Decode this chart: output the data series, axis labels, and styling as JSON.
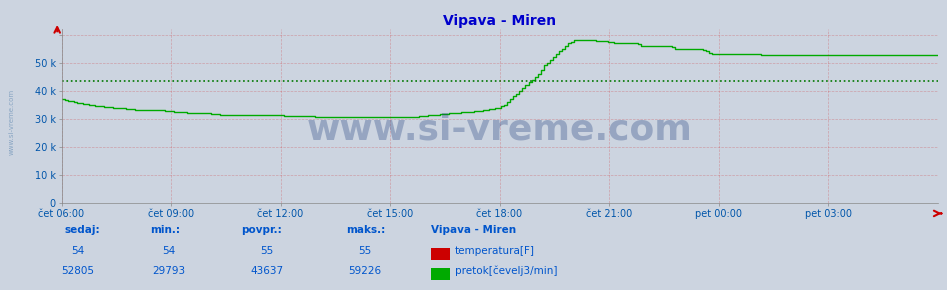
{
  "title": "Vipava - Miren",
  "title_color": "#0000cc",
  "bg_color": "#ccd4e0",
  "plot_bg_color": "#ccd4e0",
  "x_label_color": "#0055aa",
  "y_label_color": "#0055aa",
  "grid_color_h": "#cc0000",
  "grid_color_v": "#cc0000",
  "grid_alpha": 0.25,
  "ylim": [
    0,
    62000
  ],
  "yticks": [
    0,
    10000,
    20000,
    30000,
    40000,
    50000,
    60000
  ],
  "ytick_labels": [
    "0",
    "10 k",
    "20 k",
    "30 k",
    "40 k",
    "50 k",
    ""
  ],
  "xtick_labels": [
    "čet 06:00",
    "čet 09:00",
    "čet 12:00",
    "čet 15:00",
    "čet 18:00",
    "čet 21:00",
    "pet 00:00",
    "pet 03:00"
  ],
  "n_points": 288,
  "temp_value": 43637,
  "flow_data": [
    37000,
    36800,
    36500,
    36200,
    36000,
    35800,
    35600,
    35400,
    35200,
    35000,
    34800,
    34600,
    34500,
    34400,
    34300,
    34200,
    34100,
    34000,
    33900,
    33800,
    33700,
    33600,
    33500,
    33400,
    33300,
    33200,
    33100,
    33000,
    33000,
    33000,
    33000,
    33000,
    33000,
    33000,
    32900,
    32800,
    32700,
    32600,
    32500,
    32400,
    32300,
    32200,
    32100,
    32000,
    32000,
    32000,
    32000,
    32000,
    31900,
    31800,
    31700,
    31600,
    31500,
    31400,
    31300,
    31300,
    31200,
    31200,
    31200,
    31200,
    31200,
    31200,
    31200,
    31200,
    31200,
    31200,
    31200,
    31200,
    31200,
    31200,
    31200,
    31200,
    31200,
    31100,
    31000,
    31000,
    31000,
    31000,
    31000,
    31000,
    31000,
    30900,
    30900,
    30800,
    30800,
    30800,
    30800,
    30800,
    30800,
    30700,
    30700,
    30700,
    30700,
    30700,
    30700,
    30700,
    30700,
    30700,
    30700,
    30700,
    30700,
    30700,
    30700,
    30700,
    30700,
    30700,
    30700,
    30700,
    30700,
    30700,
    30700,
    30700,
    30700,
    30700,
    30700,
    30800,
    30800,
    30900,
    31000,
    31100,
    31200,
    31300,
    31400,
    31500,
    31600,
    31700,
    31800,
    31900,
    32000,
    32100,
    32200,
    32300,
    32400,
    32500,
    32600,
    32700,
    32800,
    32900,
    33000,
    33200,
    33400,
    33600,
    33800,
    34000,
    34500,
    35000,
    36000,
    37000,
    38000,
    39000,
    40000,
    41000,
    42000,
    43000,
    44000,
    45000,
    46000,
    47500,
    49000,
    50000,
    51000,
    52000,
    53000,
    54000,
    55000,
    56000,
    57000,
    57500,
    58000,
    58200,
    58200,
    58200,
    58200,
    58100,
    58000,
    57900,
    57800,
    57700,
    57600,
    57500,
    57200,
    57000,
    57000,
    57000,
    57000,
    57000,
    57000,
    57000,
    57000,
    56500,
    56000,
    56000,
    56000,
    56000,
    56000,
    56000,
    56000,
    56000,
    56000,
    56000,
    55500,
    55000,
    55000,
    55000,
    55000,
    55000,
    55000,
    55000,
    55000,
    55000,
    54500,
    54000,
    53500,
    53000,
    53000,
    53000,
    53000,
    53000,
    53000,
    53000,
    53000,
    53000,
    53000,
    53000,
    53000,
    53000,
    53000,
    53000,
    53000,
    52805,
    52805,
    52805,
    52805,
    52805,
    52805,
    52805,
    52805,
    52805,
    52805,
    52805,
    52805,
    52805,
    52805,
    52805,
    52805,
    52805,
    52805,
    52805,
    52805,
    52805,
    52805,
    52805,
    52805,
    52805,
    52805,
    52805,
    52805,
    52805,
    52805,
    52805,
    52805,
    52805,
    52805,
    52805,
    52805,
    52805,
    52805,
    52805,
    52805,
    52805,
    52805,
    52805,
    52805,
    52805,
    52805,
    52805,
    52805,
    52805,
    52805,
    52805,
    52805,
    52805,
    52805,
    52805,
    52805,
    52805,
    52805,
    52805
  ],
  "flow_color": "#00aa00",
  "temp_line_color": "#007700",
  "watermark_text": "www.si-vreme.com",
  "watermark_color": "#1a3a7a",
  "watermark_alpha": 0.3,
  "watermark_fontsize": 26,
  "left_label": "www.si-vreme.com",
  "left_label_color": "#7799bb",
  "footer_color": "#0055cc",
  "sedaj_label": "sedaj:",
  "min_label": "min.:",
  "povpr_label": "povpr.:",
  "maks_label": "maks.:",
  "station_label": "Vipava - Miren",
  "temp_sedaj": 54,
  "temp_min": 54,
  "temp_povpr": 55,
  "temp_maks": 55,
  "flow_sedaj": 52805,
  "flow_min": 29793,
  "flow_povpr": 43637,
  "flow_maks": 59226,
  "legend_temp_color": "#cc0000",
  "legend_flow_color": "#00aa00",
  "legend_temp_label": "temperatura[F]",
  "legend_flow_label": "pretok[čevelj3/min]"
}
